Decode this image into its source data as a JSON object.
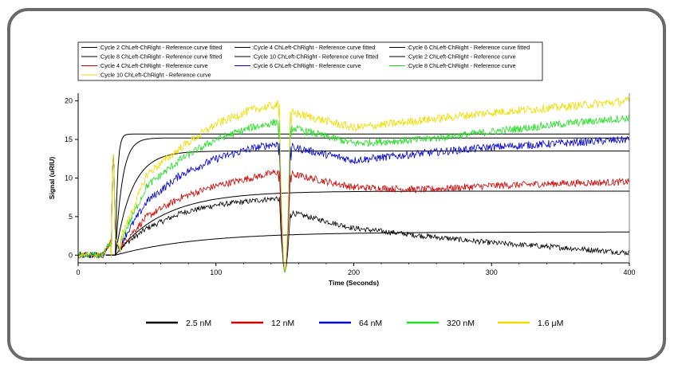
{
  "colors": {
    "frame_border": "#6b6b6b",
    "black": "#000000",
    "red": "#cc0000",
    "blue": "#0000cc",
    "green": "#22dd22",
    "yellow": "#eedd00",
    "fit": "#000000"
  },
  "chart_data": {
    "type": "line",
    "title": "",
    "xlabel": "Time (Seconds)",
    "ylabel": "Signal (uRIU)",
    "xlim": [
      0,
      400
    ],
    "ylim": [
      -1,
      21
    ],
    "x_ticks": [
      0,
      100,
      200,
      300,
      400
    ],
    "y_ticks": [
      0,
      5,
      10,
      15,
      20
    ],
    "grid": false,
    "injection_start": 27,
    "injection_end": 150,
    "top_legend": [
      ":Cycle 2 ChLeft-ChRight - Reference curve fitted",
      ":Cycle 4 ChLeft-ChRight - Reference curve fitted",
      ":Cycle 6 ChLeft-ChRight - Reference curve fitted",
      ":Cycle 8 ChLeft-ChRight - Reference curve fitted",
      ":Cycle 10 ChLeft-ChRight - Reference curve fitted",
      ":Cycle 2 ChLeft-ChRight - Reference curve",
      ":Cycle 4 ChLeft-ChRight - Reference curve",
      ":Cycle 6 ChLeft-ChRight - Reference curve",
      ":Cycle 8 ChLeft-ChRight - Reference curve",
      ":Cycle 10 ChLeft-ChRight - Reference curve"
    ],
    "top_legend_colors": [
      "#000000",
      "#000000",
      "#000000",
      "#000000",
      "#000000",
      "#000000",
      "#cc0000",
      "#0000cc",
      "#22dd22",
      "#eedd00"
    ],
    "series": [
      {
        "name": "2.5 nM",
        "color": "#000000",
        "x": [
          27,
          50,
          75,
          100,
          125,
          145,
          150,
          155,
          200,
          250,
          300,
          350,
          400
        ],
        "y": [
          0.5,
          3.5,
          5.5,
          6.5,
          7.0,
          7.4,
          0,
          5.5,
          3.5,
          2.5,
          1.6,
          1.0,
          0.3
        ],
        "fit": {
          "plateau": 3.0,
          "tau": 60
        }
      },
      {
        "name": "12 nM",
        "color": "#cc0000",
        "x": [
          27,
          50,
          75,
          100,
          125,
          145,
          150,
          155,
          200,
          250,
          300,
          350,
          400
        ],
        "y": [
          0.5,
          5.0,
          7.5,
          9.0,
          10.0,
          10.8,
          0,
          10.5,
          8.8,
          8.5,
          9.0,
          9.3,
          9.5
        ],
        "fit": {
          "plateau": 8.3,
          "tau": 35
        }
      },
      {
        "name": "64 nM",
        "color": "#0000cc",
        "x": [
          27,
          50,
          75,
          100,
          125,
          145,
          150,
          155,
          200,
          250,
          300,
          350,
          400
        ],
        "y": [
          0.5,
          7.0,
          10.5,
          12.5,
          13.8,
          14.5,
          0,
          14.0,
          12.3,
          13.2,
          14.0,
          14.5,
          15.0
        ],
        "fit": {
          "plateau": 13.5,
          "tau": 12
        }
      },
      {
        "name": "320 nM",
        "color": "#22dd22",
        "x": [
          27,
          50,
          75,
          100,
          125,
          145,
          150,
          155,
          200,
          250,
          300,
          350,
          400
        ],
        "y": [
          0.5,
          9.0,
          12.5,
          15.0,
          16.5,
          17.3,
          0,
          16.5,
          14.5,
          15.0,
          16.0,
          17.0,
          17.8
        ],
        "fit": {
          "plateau": 15.2,
          "tau": 5
        }
      },
      {
        "name": "1.6 μM",
        "color": "#eedd00",
        "x": [
          27,
          50,
          75,
          100,
          125,
          145,
          150,
          155,
          200,
          250,
          300,
          350,
          400
        ],
        "y": [
          0.5,
          10.5,
          14.0,
          17.0,
          18.8,
          19.5,
          0,
          18.5,
          16.5,
          17.5,
          18.5,
          19.2,
          20.0
        ],
        "fit": {
          "plateau": 15.7,
          "tau": 1.5
        }
      }
    ],
    "bottom_legend": [
      "2.5 nM",
      "12 nM",
      "64 nM",
      "320 nM",
      "1.6 μM"
    ],
    "bottom_legend_colors": [
      "#000000",
      "#cc0000",
      "#0000cc",
      "#22dd22",
      "#eedd00"
    ]
  }
}
